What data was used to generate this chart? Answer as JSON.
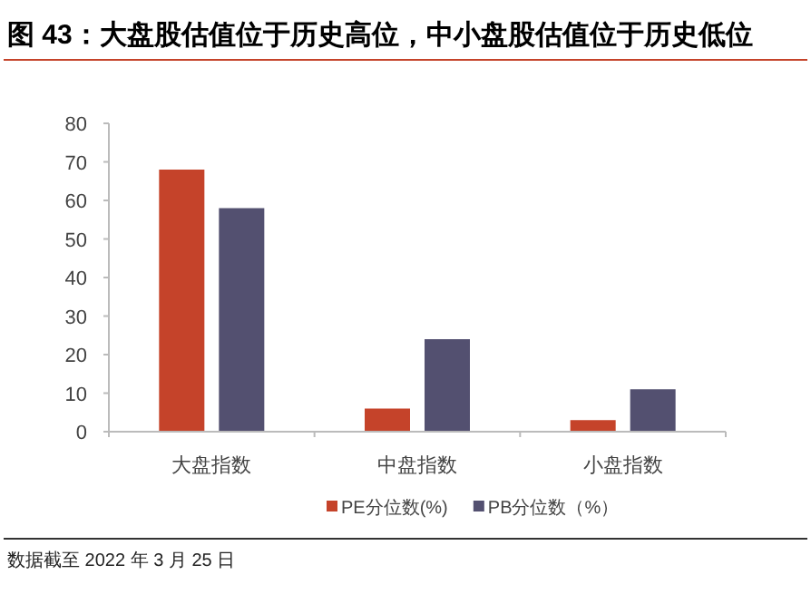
{
  "chart_data": {
    "type": "bar",
    "title": "图 43：大盘股估值位于历史高位，中小盘股估值位于历史低位",
    "categories": [
      "大盘指数",
      "中盘指数",
      "小盘指数"
    ],
    "series": [
      {
        "name": "PE分位数(%)",
        "color": "#c5432a",
        "values": [
          68,
          6,
          3
        ]
      },
      {
        "name": "PB分位数（%）",
        "color": "#535070",
        "values": [
          58,
          24,
          11
        ]
      }
    ],
    "ylim": [
      0,
      80
    ],
    "yticks": [
      0,
      10,
      20,
      30,
      40,
      50,
      60,
      70,
      80
    ],
    "grid": false,
    "legend": "bottom",
    "annotations": [
      "数据截至 2022 年 3 月 25 日"
    ]
  }
}
